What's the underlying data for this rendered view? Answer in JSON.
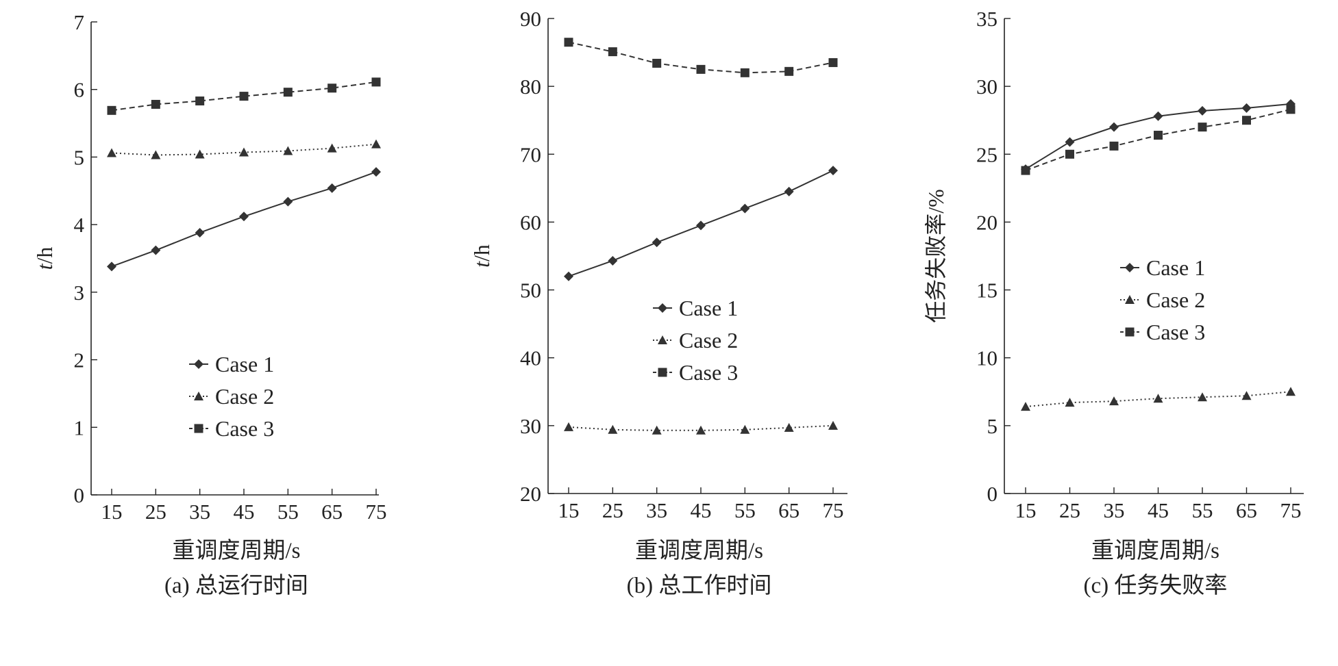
{
  "chart_data": [
    {
      "type": "line",
      "title": "",
      "caption": "(a) 总运行时间",
      "xlabel": "重调度周期/s",
      "ylabel_italic": "t",
      "ylabel_unit": "/h",
      "categories": [
        "15",
        "25",
        "35",
        "45",
        "55",
        "65",
        "75"
      ],
      "ylim": [
        0,
        7
      ],
      "yticks": [
        "0",
        "1",
        "2",
        "3",
        "4",
        "5",
        "6",
        "7"
      ],
      "legend_position": "center",
      "series": [
        {
          "name": "Case 1",
          "marker": "diamond",
          "line": "solid",
          "values": [
            3.38,
            3.62,
            3.88,
            4.12,
            4.34,
            4.54,
            4.78
          ]
        },
        {
          "name": "Case 2",
          "marker": "triangle",
          "line": "dotted",
          "values": [
            5.06,
            5.03,
            5.04,
            5.07,
            5.09,
            5.13,
            5.19
          ]
        },
        {
          "name": "Case 3",
          "marker": "square",
          "line": "dashed",
          "values": [
            5.69,
            5.78,
            5.83,
            5.9,
            5.96,
            6.02,
            6.11
          ]
        }
      ]
    },
    {
      "type": "line",
      "title": "",
      "caption": "(b) 总工作时间",
      "xlabel": "重调度周期/s",
      "ylabel_italic": "t",
      "ylabel_unit": "/h",
      "categories": [
        "15",
        "25",
        "35",
        "45",
        "55",
        "65",
        "75"
      ],
      "ylim": [
        20,
        90
      ],
      "yticks": [
        "20",
        "30",
        "40",
        "50",
        "60",
        "70",
        "80",
        "90"
      ],
      "legend_position": "center",
      "series": [
        {
          "name": "Case 1",
          "marker": "diamond",
          "line": "solid",
          "values": [
            52.0,
            54.3,
            57.0,
            59.5,
            62.0,
            64.5,
            67.6
          ]
        },
        {
          "name": "Case 2",
          "marker": "triangle",
          "line": "dotted",
          "values": [
            29.8,
            29.4,
            29.3,
            29.3,
            29.4,
            29.7,
            30.0
          ]
        },
        {
          "name": "Case 3",
          "marker": "square",
          "line": "dashed",
          "values": [
            86.5,
            85.1,
            83.4,
            82.5,
            82.0,
            82.2,
            83.5
          ]
        }
      ]
    },
    {
      "type": "line",
      "title": "",
      "caption": "(c) 任务失败率",
      "xlabel": "重调度周期/s",
      "ylabel_italic": "",
      "ylabel_unit": "任务失败率/%",
      "categories": [
        "15",
        "25",
        "35",
        "45",
        "55",
        "65",
        "75"
      ],
      "ylim": [
        0,
        35
      ],
      "yticks": [
        "0",
        "5",
        "10",
        "15",
        "20",
        "25",
        "30",
        "35"
      ],
      "legend_position": "center",
      "series": [
        {
          "name": "Case 1",
          "marker": "diamond",
          "line": "solid",
          "values": [
            23.9,
            25.9,
            27.0,
            27.8,
            28.2,
            28.4,
            28.7
          ]
        },
        {
          "name": "Case 2",
          "marker": "triangle",
          "line": "dotted",
          "values": [
            6.4,
            6.7,
            6.8,
            7.0,
            7.1,
            7.2,
            7.5
          ]
        },
        {
          "name": "Case 3",
          "marker": "square",
          "line": "dashed",
          "values": [
            23.8,
            25.0,
            25.6,
            26.4,
            27.0,
            27.5,
            28.3
          ]
        }
      ]
    }
  ],
  "colors": {
    "line": "#333333",
    "axis": "#222222",
    "background": "#ffffff"
  }
}
